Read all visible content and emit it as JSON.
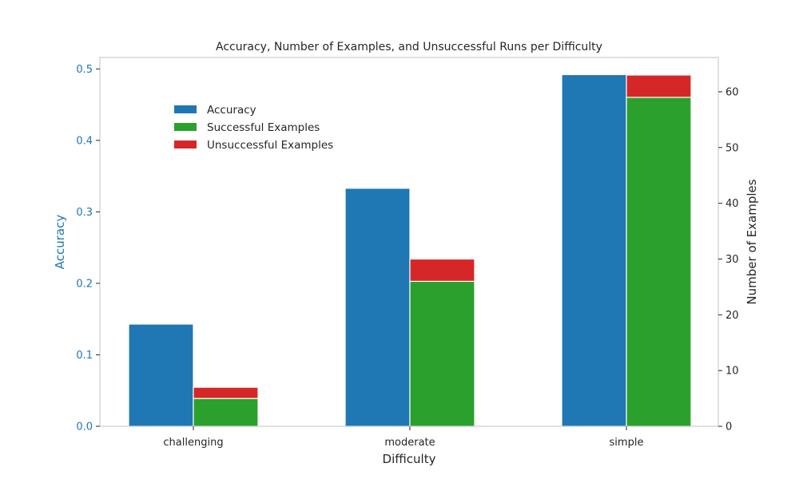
{
  "chart_data": {
    "type": "bar",
    "title": "Accuracy, Number of Examples, and Unsuccessful Runs per Difficulty",
    "xlabel": "Difficulty",
    "ylabel_left": "Accuracy",
    "ylabel_right": "Number of Examples",
    "categories": [
      "challenging",
      "moderate",
      "simple"
    ],
    "ylim_left": [
      0,
      0.516
    ],
    "ylim_right": [
      0,
      66.15
    ],
    "yticks_left": [
      "0.0",
      "0.1",
      "0.2",
      "0.3",
      "0.4",
      "0.5"
    ],
    "yticks_right": [
      "0",
      "10",
      "20",
      "30",
      "40",
      "50",
      "60"
    ],
    "legend_position": "upper-left",
    "grid": false,
    "series": [
      {
        "name": "Accuracy",
        "axis": "left",
        "color": "#1f77b4",
        "values": [
          0.143,
          0.333,
          0.492
        ]
      },
      {
        "name": "Successful Examples",
        "axis": "right",
        "color": "#2ca02c",
        "values": [
          5,
          26,
          59
        ]
      },
      {
        "name": "Unsuccessful Examples",
        "axis": "right",
        "color": "#d62728",
        "stacked_on": "Successful Examples",
        "values": [
          2,
          4,
          4
        ]
      }
    ],
    "colors": {
      "left_axis": "#1f77b4",
      "right_axis": "#262626",
      "frame": "#cccccc"
    }
  }
}
